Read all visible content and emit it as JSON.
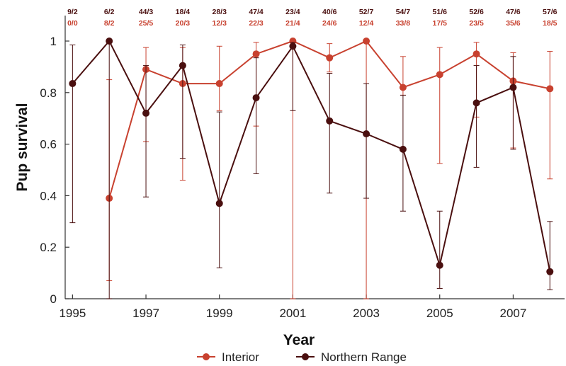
{
  "chart_data": {
    "type": "line",
    "xlabel": "Year",
    "ylabel": "Pup survival",
    "xlim": [
      1994.8,
      2008.4
    ],
    "ylim": [
      0,
      1.1
    ],
    "x_ticks": [
      1995,
      1997,
      1999,
      2001,
      2003,
      2005,
      2007
    ],
    "x_tick_labels": [
      "1995",
      "1997",
      "1999",
      "2001",
      "2003",
      "2005",
      "2007"
    ],
    "y_ticks": [
      0,
      0.2,
      0.4,
      0.6,
      0.8,
      1
    ],
    "y_tick_labels": [
      "0",
      "0.2",
      "0.4",
      "0.6",
      "0.8",
      "1"
    ],
    "grid": false,
    "legend_position": "bottom",
    "colors": {
      "Interior": "#c8412f",
      "Northern Range": "#4a0f0f",
      "axis": "#333333"
    },
    "top_labels": {
      "years": [
        1995,
        1996,
        1997,
        1998,
        1999,
        2000,
        2001,
        2002,
        2003,
        2004,
        2005,
        2006,
        2007,
        2008
      ],
      "northern_range": [
        "9/2",
        "6/2",
        "44/3",
        "18/4",
        "28/3",
        "47/4",
        "23/4",
        "40/6",
        "52/7",
        "54/7",
        "51/6",
        "52/6",
        "47/6",
        "57/6"
      ],
      "interior": [
        "0/0",
        "8/2",
        "25/5",
        "20/3",
        "12/3",
        "22/3",
        "21/4",
        "24/6",
        "12/4",
        "33/8",
        "17/5",
        "23/5",
        "35/6",
        "18/5"
      ]
    },
    "series": [
      {
        "name": "Interior",
        "x": [
          1996,
          1997,
          1998,
          1999,
          2000,
          2001,
          2002,
          2003,
          2004,
          2005,
          2006,
          2007,
          2008
        ],
        "y": [
          0.39,
          0.89,
          0.835,
          0.835,
          0.95,
          1.0,
          0.935,
          1.0,
          0.82,
          0.87,
          0.95,
          0.845,
          0.815
        ],
        "err_low": [
          0.07,
          0.61,
          0.46,
          0.73,
          0.67,
          0.0,
          0.88,
          0.0,
          0.79,
          0.525,
          0.705,
          0.585,
          0.465
        ],
        "err_high": [
          0.85,
          0.975,
          0.975,
          0.98,
          0.995,
          1.0,
          0.99,
          1.0,
          0.94,
          0.975,
          0.995,
          0.955,
          0.96
        ]
      },
      {
        "name": "Northern Range",
        "x": [
          1995,
          1996,
          1997,
          1998,
          1999,
          2000,
          2001,
          2002,
          2003,
          2004,
          2005,
          2006,
          2007,
          2008
        ],
        "y": [
          0.835,
          1.0,
          0.72,
          0.905,
          0.37,
          0.78,
          0.98,
          0.69,
          0.64,
          0.58,
          0.13,
          0.76,
          0.82,
          0.105
        ],
        "err_low": [
          0.295,
          0.0,
          0.395,
          0.545,
          0.12,
          0.485,
          0.73,
          0.41,
          0.39,
          0.34,
          0.04,
          0.51,
          0.58,
          0.035
        ],
        "err_high": [
          0.985,
          1.0,
          0.905,
          0.985,
          0.725,
          0.935,
          0.995,
          0.875,
          0.835,
          0.79,
          0.34,
          0.905,
          0.94,
          0.3
        ]
      }
    ]
  }
}
